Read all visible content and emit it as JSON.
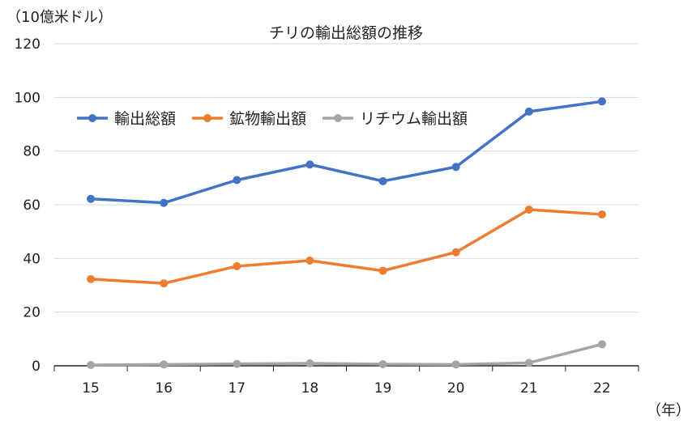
{
  "chart_data": {
    "type": "line",
    "title": "チリの輸出総額の推移",
    "ylabel": "（10億米ドル）",
    "xlabel": "（年）",
    "categories": [
      "15",
      "16",
      "17",
      "18",
      "19",
      "20",
      "21",
      "22"
    ],
    "ylim": [
      0,
      120
    ],
    "yticks": [
      0,
      20,
      40,
      60,
      80,
      100,
      120
    ],
    "grid": true,
    "legend_position": "top-left",
    "series": [
      {
        "name": "輸出総額",
        "color": "#4472C4",
        "values": [
          62.2,
          60.7,
          69.2,
          75.0,
          68.8,
          74.1,
          94.7,
          98.5
        ]
      },
      {
        "name": "鉱物輸出額",
        "color": "#ED7D31",
        "values": [
          32.3,
          30.7,
          37.1,
          39.2,
          35.4,
          42.3,
          58.2,
          56.4
        ]
      },
      {
        "name": "リチウム輸出額",
        "color": "#A5A5A5",
        "values": [
          0.3,
          0.5,
          0.7,
          0.9,
          0.6,
          0.5,
          1.1,
          8.0
        ]
      }
    ]
  }
}
